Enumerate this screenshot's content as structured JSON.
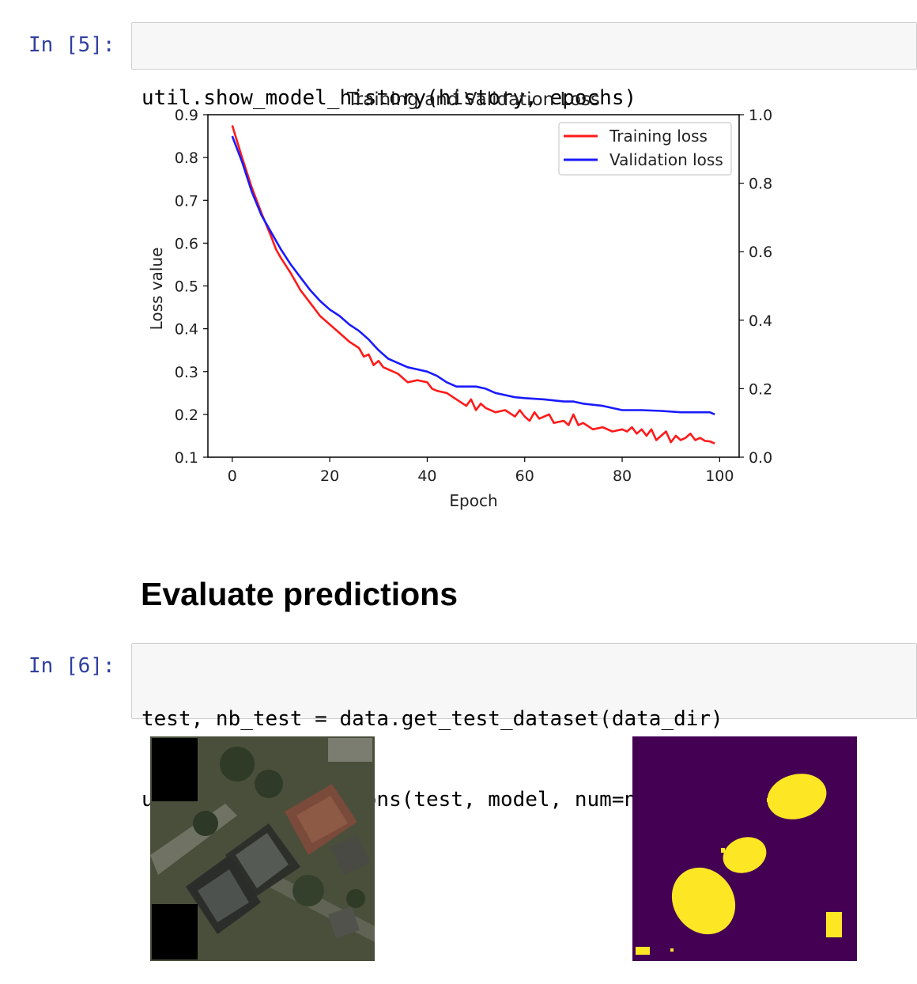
{
  "cells": [
    {
      "prompt": "In [5]:",
      "code": [
        "util.show_model_history(history, epochs)"
      ]
    },
    {
      "prompt": "In [6]:",
      "code": [
        "test, nb_test = data.get_test_dataset(data_dir)",
        "util.show_predictions(test, model, num=nb_test)"
      ]
    }
  ],
  "markdown": {
    "heading": "Evaluate predictions"
  },
  "chart_data": {
    "type": "line",
    "title": "Training and Validation Loss",
    "xlabel": "Epoch",
    "ylabel": "Loss value",
    "xlim": [
      -5,
      104
    ],
    "ylim": [
      0.1,
      0.9
    ],
    "y2lim": [
      0.0,
      1.0
    ],
    "xticks": [
      "0",
      "20",
      "40",
      "60",
      "80",
      "100"
    ],
    "yticks": [
      "0.1",
      "0.2",
      "0.3",
      "0.4",
      "0.5",
      "0.6",
      "0.7",
      "0.8",
      "0.9"
    ],
    "y2ticks": [
      "0.0",
      "0.2",
      "0.4",
      "0.6",
      "0.8",
      "1.0"
    ],
    "legend": "top-right",
    "grid": false,
    "series": [
      {
        "name": "Training loss",
        "color": "#ff1a1a",
        "x": [
          0,
          2,
          4,
          6,
          8,
          9,
          10,
          12,
          14,
          16,
          18,
          20,
          22,
          24,
          26,
          27,
          28,
          29,
          30,
          31,
          32,
          34,
          36,
          38,
          40,
          41,
          42,
          44,
          46,
          48,
          49,
          50,
          51,
          52,
          54,
          56,
          58,
          59,
          60,
          61,
          62,
          63,
          64,
          65,
          66,
          68,
          69,
          70,
          71,
          72,
          74,
          76,
          78,
          80,
          81,
          82,
          83,
          84,
          85,
          86,
          87,
          88,
          89,
          90,
          91,
          92,
          93,
          94,
          95,
          96,
          97,
          98,
          99
        ],
        "y": [
          0.875,
          0.8,
          0.73,
          0.67,
          0.615,
          0.585,
          0.565,
          0.53,
          0.49,
          0.46,
          0.43,
          0.41,
          0.39,
          0.37,
          0.355,
          0.335,
          0.34,
          0.315,
          0.325,
          0.31,
          0.305,
          0.295,
          0.275,
          0.28,
          0.275,
          0.26,
          0.255,
          0.25,
          0.235,
          0.22,
          0.235,
          0.21,
          0.225,
          0.215,
          0.205,
          0.21,
          0.195,
          0.21,
          0.195,
          0.185,
          0.205,
          0.19,
          0.195,
          0.2,
          0.18,
          0.185,
          0.175,
          0.2,
          0.175,
          0.18,
          0.165,
          0.17,
          0.16,
          0.165,
          0.16,
          0.17,
          0.155,
          0.165,
          0.15,
          0.165,
          0.14,
          0.15,
          0.16,
          0.135,
          0.15,
          0.14,
          0.145,
          0.155,
          0.14,
          0.145,
          0.138,
          0.137,
          0.132
        ]
      },
      {
        "name": "Validation loss",
        "color": "#1a1aff",
        "x": [
          0,
          2,
          4,
          6,
          8,
          10,
          12,
          14,
          16,
          18,
          20,
          22,
          24,
          26,
          28,
          30,
          32,
          34,
          36,
          38,
          40,
          42,
          44,
          46,
          48,
          50,
          52,
          54,
          56,
          58,
          60,
          64,
          68,
          70,
          72,
          76,
          80,
          84,
          88,
          92,
          94,
          96,
          98,
          99
        ],
        "y": [
          0.85,
          0.79,
          0.72,
          0.665,
          0.625,
          0.585,
          0.55,
          0.52,
          0.49,
          0.465,
          0.445,
          0.43,
          0.41,
          0.395,
          0.375,
          0.35,
          0.33,
          0.32,
          0.31,
          0.305,
          0.3,
          0.29,
          0.275,
          0.265,
          0.265,
          0.265,
          0.26,
          0.25,
          0.245,
          0.24,
          0.238,
          0.235,
          0.23,
          0.23,
          0.225,
          0.22,
          0.21,
          0.21,
          0.208,
          0.205,
          0.205,
          0.205,
          0.205,
          0.2
        ]
      }
    ]
  },
  "images": [
    {
      "name": "aerial-photo",
      "alt": "satellite image"
    },
    {
      "name": "predicted-mask",
      "alt": "prediction mask",
      "background": "#440154",
      "foreground": "#fde725"
    }
  ]
}
